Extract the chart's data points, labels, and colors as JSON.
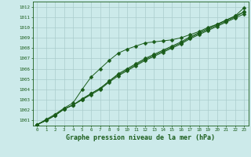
{
  "title": "Graphe pression niveau de la mer (hPa)",
  "xlabel_hours": [
    0,
    1,
    2,
    3,
    4,
    5,
    6,
    7,
    8,
    9,
    10,
    11,
    12,
    13,
    14,
    15,
    16,
    17,
    18,
    19,
    20,
    21,
    22,
    23
  ],
  "line1": [
    1000.6,
    1001.0,
    1001.5,
    1002.1,
    1002.5,
    1003.0,
    1003.5,
    1004.0,
    1004.7,
    1005.3,
    1005.8,
    1006.3,
    1006.8,
    1007.2,
    1007.6,
    1008.0,
    1008.4,
    1008.9,
    1009.3,
    1009.7,
    1010.1,
    1010.5,
    1010.9,
    1011.3
  ],
  "line2": [
    1000.6,
    1001.0,
    1001.5,
    1002.1,
    1002.5,
    1003.1,
    1003.6,
    1004.1,
    1004.8,
    1005.4,
    1005.9,
    1006.4,
    1006.9,
    1007.3,
    1007.7,
    1008.1,
    1008.5,
    1009.0,
    1009.4,
    1009.8,
    1010.2,
    1010.6,
    1011.0,
    1011.5
  ],
  "line3": [
    1000.6,
    1001.1,
    1001.6,
    1002.2,
    1002.7,
    1004.0,
    1005.2,
    1006.0,
    1006.8,
    1007.5,
    1007.9,
    1008.2,
    1008.5,
    1008.6,
    1008.7,
    1008.8,
    1009.0,
    1009.3,
    1009.6,
    1010.0,
    1010.3,
    1010.7,
    1011.1,
    1011.5
  ],
  "line4": [
    1000.6,
    1001.0,
    1001.5,
    1002.1,
    1002.5,
    1003.0,
    1003.6,
    1004.1,
    1004.8,
    1005.5,
    1006.0,
    1006.5,
    1007.0,
    1007.4,
    1007.8,
    1008.2,
    1008.6,
    1009.1,
    1009.5,
    1009.9,
    1010.3,
    1010.7,
    1011.1,
    1011.9
  ],
  "ylim_min": 1000.5,
  "ylim_max": 1012.5,
  "yticks": [
    1001,
    1002,
    1003,
    1004,
    1005,
    1006,
    1007,
    1008,
    1009,
    1010,
    1011,
    1012
  ],
  "bg_color": "#cceaea",
  "line_color": "#1a5c1a",
  "grid_color": "#aacccc",
  "title_color": "#1a5c1a",
  "marker_size": 2.5,
  "linewidth": 0.7,
  "title_fontsize": 6.0,
  "tick_fontsize": 4.2
}
